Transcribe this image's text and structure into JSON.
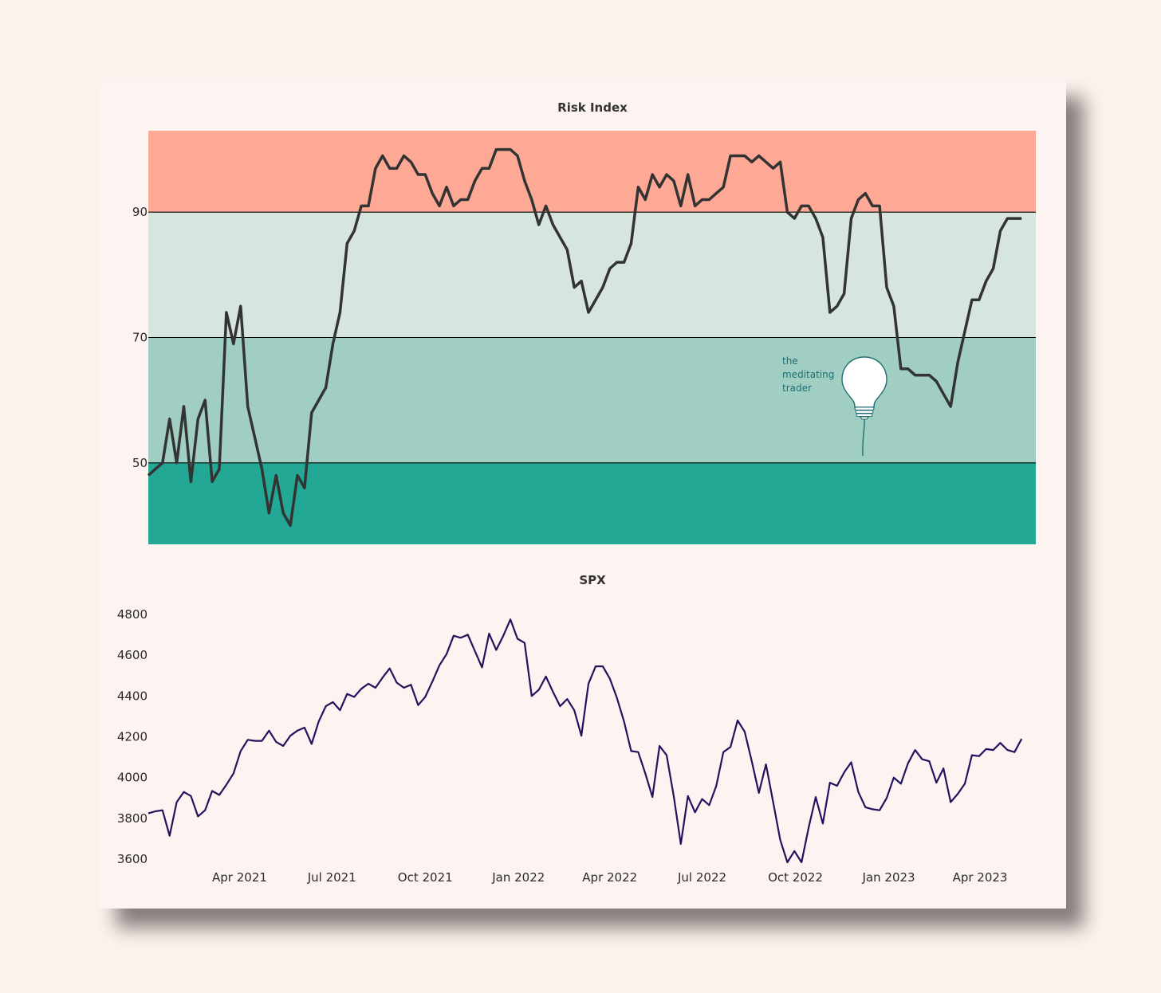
{
  "colors": {
    "page_background": "#fcf2ee",
    "card_background": "#fdf4f1",
    "zone_high": "#fea995",
    "zone_upper_mid": "#d6e6df",
    "zone_lower_mid": "#a0cec3",
    "zone_low": "#23a895",
    "risk_line": "#333333",
    "spx_line": "#22135e",
    "logo": "#1f6f73"
  },
  "logo": {
    "icon": "lightbulb-balloon-icon",
    "lines": [
      "the",
      "meditating",
      "trader"
    ]
  },
  "chart_data": [
    {
      "type": "line",
      "title": "Risk Index",
      "ylim": [
        37,
        103
      ],
      "yticks": [
        "50",
        "70",
        "90"
      ],
      "bands": [
        {
          "from": 37,
          "to": 50,
          "color": "#23a895"
        },
        {
          "from": 50,
          "to": 70,
          "color": "#a0cec3"
        },
        {
          "from": 70,
          "to": 90,
          "color": "#d6e6df"
        },
        {
          "from": 90,
          "to": 103,
          "color": "#fea995"
        }
      ],
      "threshold_lines": [
        50,
        70,
        90
      ],
      "x_start": "2021-01-01",
      "x_end": "2023-05-26",
      "x_step_days": 7,
      "series": [
        {
          "values": [
            48,
            49,
            50,
            57,
            50,
            59,
            47,
            57,
            60,
            47,
            49,
            74,
            69,
            75,
            59,
            54,
            49,
            42,
            48,
            42,
            40,
            48,
            46,
            58,
            60,
            62,
            69,
            74,
            85,
            87,
            91,
            91,
            97,
            99,
            97,
            97,
            99,
            98,
            96,
            96,
            93,
            91,
            94,
            91,
            92,
            92,
            95,
            97,
            97,
            100,
            100,
            100,
            99,
            95,
            92,
            88,
            91,
            88,
            86,
            84,
            78,
            79,
            74,
            76,
            78,
            81,
            82,
            82,
            85,
            94,
            92,
            96,
            94,
            96,
            95,
            91,
            96,
            91,
            92,
            92,
            93,
            94,
            99,
            99,
            99,
            98,
            99,
            98,
            97,
            98,
            90,
            89,
            91,
            91,
            89,
            86,
            74,
            75,
            77,
            89,
            92,
            93,
            91,
            91,
            78,
            75,
            65,
            65,
            64,
            64,
            64,
            63,
            61,
            59,
            66,
            71,
            76,
            76,
            79,
            81,
            87,
            89,
            89,
            89
          ]
        }
      ]
    },
    {
      "type": "line",
      "title": "SPX",
      "ylim": [
        3550,
        4850
      ],
      "yticks": [
        "3600",
        "3800",
        "4000",
        "4200",
        "4400",
        "4600",
        "4800"
      ],
      "xticks": [
        {
          "label": "Apr 2021",
          "date": "2021-04-01"
        },
        {
          "label": "Jul 2021",
          "date": "2021-07-01"
        },
        {
          "label": "Oct 2021",
          "date": "2021-10-01"
        },
        {
          "label": "Jan 2022",
          "date": "2022-01-01"
        },
        {
          "label": "Apr 2022",
          "date": "2022-04-01"
        },
        {
          "label": "Jul 2022",
          "date": "2022-07-01"
        },
        {
          "label": "Oct 2022",
          "date": "2022-10-01"
        },
        {
          "label": "Jan 2023",
          "date": "2023-01-01"
        },
        {
          "label": "Apr 2023",
          "date": "2023-04-01"
        }
      ],
      "x_start": "2021-01-01",
      "x_end": "2023-05-26",
      "x_step_days": 7,
      "series": [
        {
          "values": [
            3825,
            3835,
            3840,
            3715,
            3880,
            3930,
            3910,
            3810,
            3840,
            3935,
            3915,
            3965,
            4020,
            4130,
            4185,
            4180,
            4180,
            4230,
            4175,
            4155,
            4205,
            4230,
            4245,
            4165,
            4275,
            4350,
            4370,
            4330,
            4410,
            4395,
            4435,
            4460,
            4440,
            4490,
            4535,
            4465,
            4440,
            4455,
            4355,
            4395,
            4470,
            4550,
            4605,
            4695,
            4685,
            4700,
            4620,
            4540,
            4705,
            4625,
            4695,
            4775,
            4680,
            4660,
            4400,
            4430,
            4495,
            4420,
            4350,
            4385,
            4330,
            4205,
            4460,
            4545,
            4545,
            4485,
            4390,
            4275,
            4130,
            4125,
            4020,
            3905,
            4155,
            4110,
            3910,
            3675,
            3910,
            3830,
            3895,
            3865,
            3960,
            4125,
            4150,
            4280,
            4225,
            4080,
            3925,
            4065,
            3880,
            3695,
            3585,
            3640,
            3585,
            3755,
            3905,
            3775,
            3975,
            3960,
            4025,
            4075,
            3930,
            3855,
            3845,
            3840,
            3900,
            4000,
            3970,
            4070,
            4135,
            4090,
            4080,
            3975,
            4045,
            3880,
            3920,
            3970,
            4110,
            4105,
            4140,
            4135,
            4170,
            4135,
            4125,
            4190
          ]
        }
      ]
    }
  ]
}
